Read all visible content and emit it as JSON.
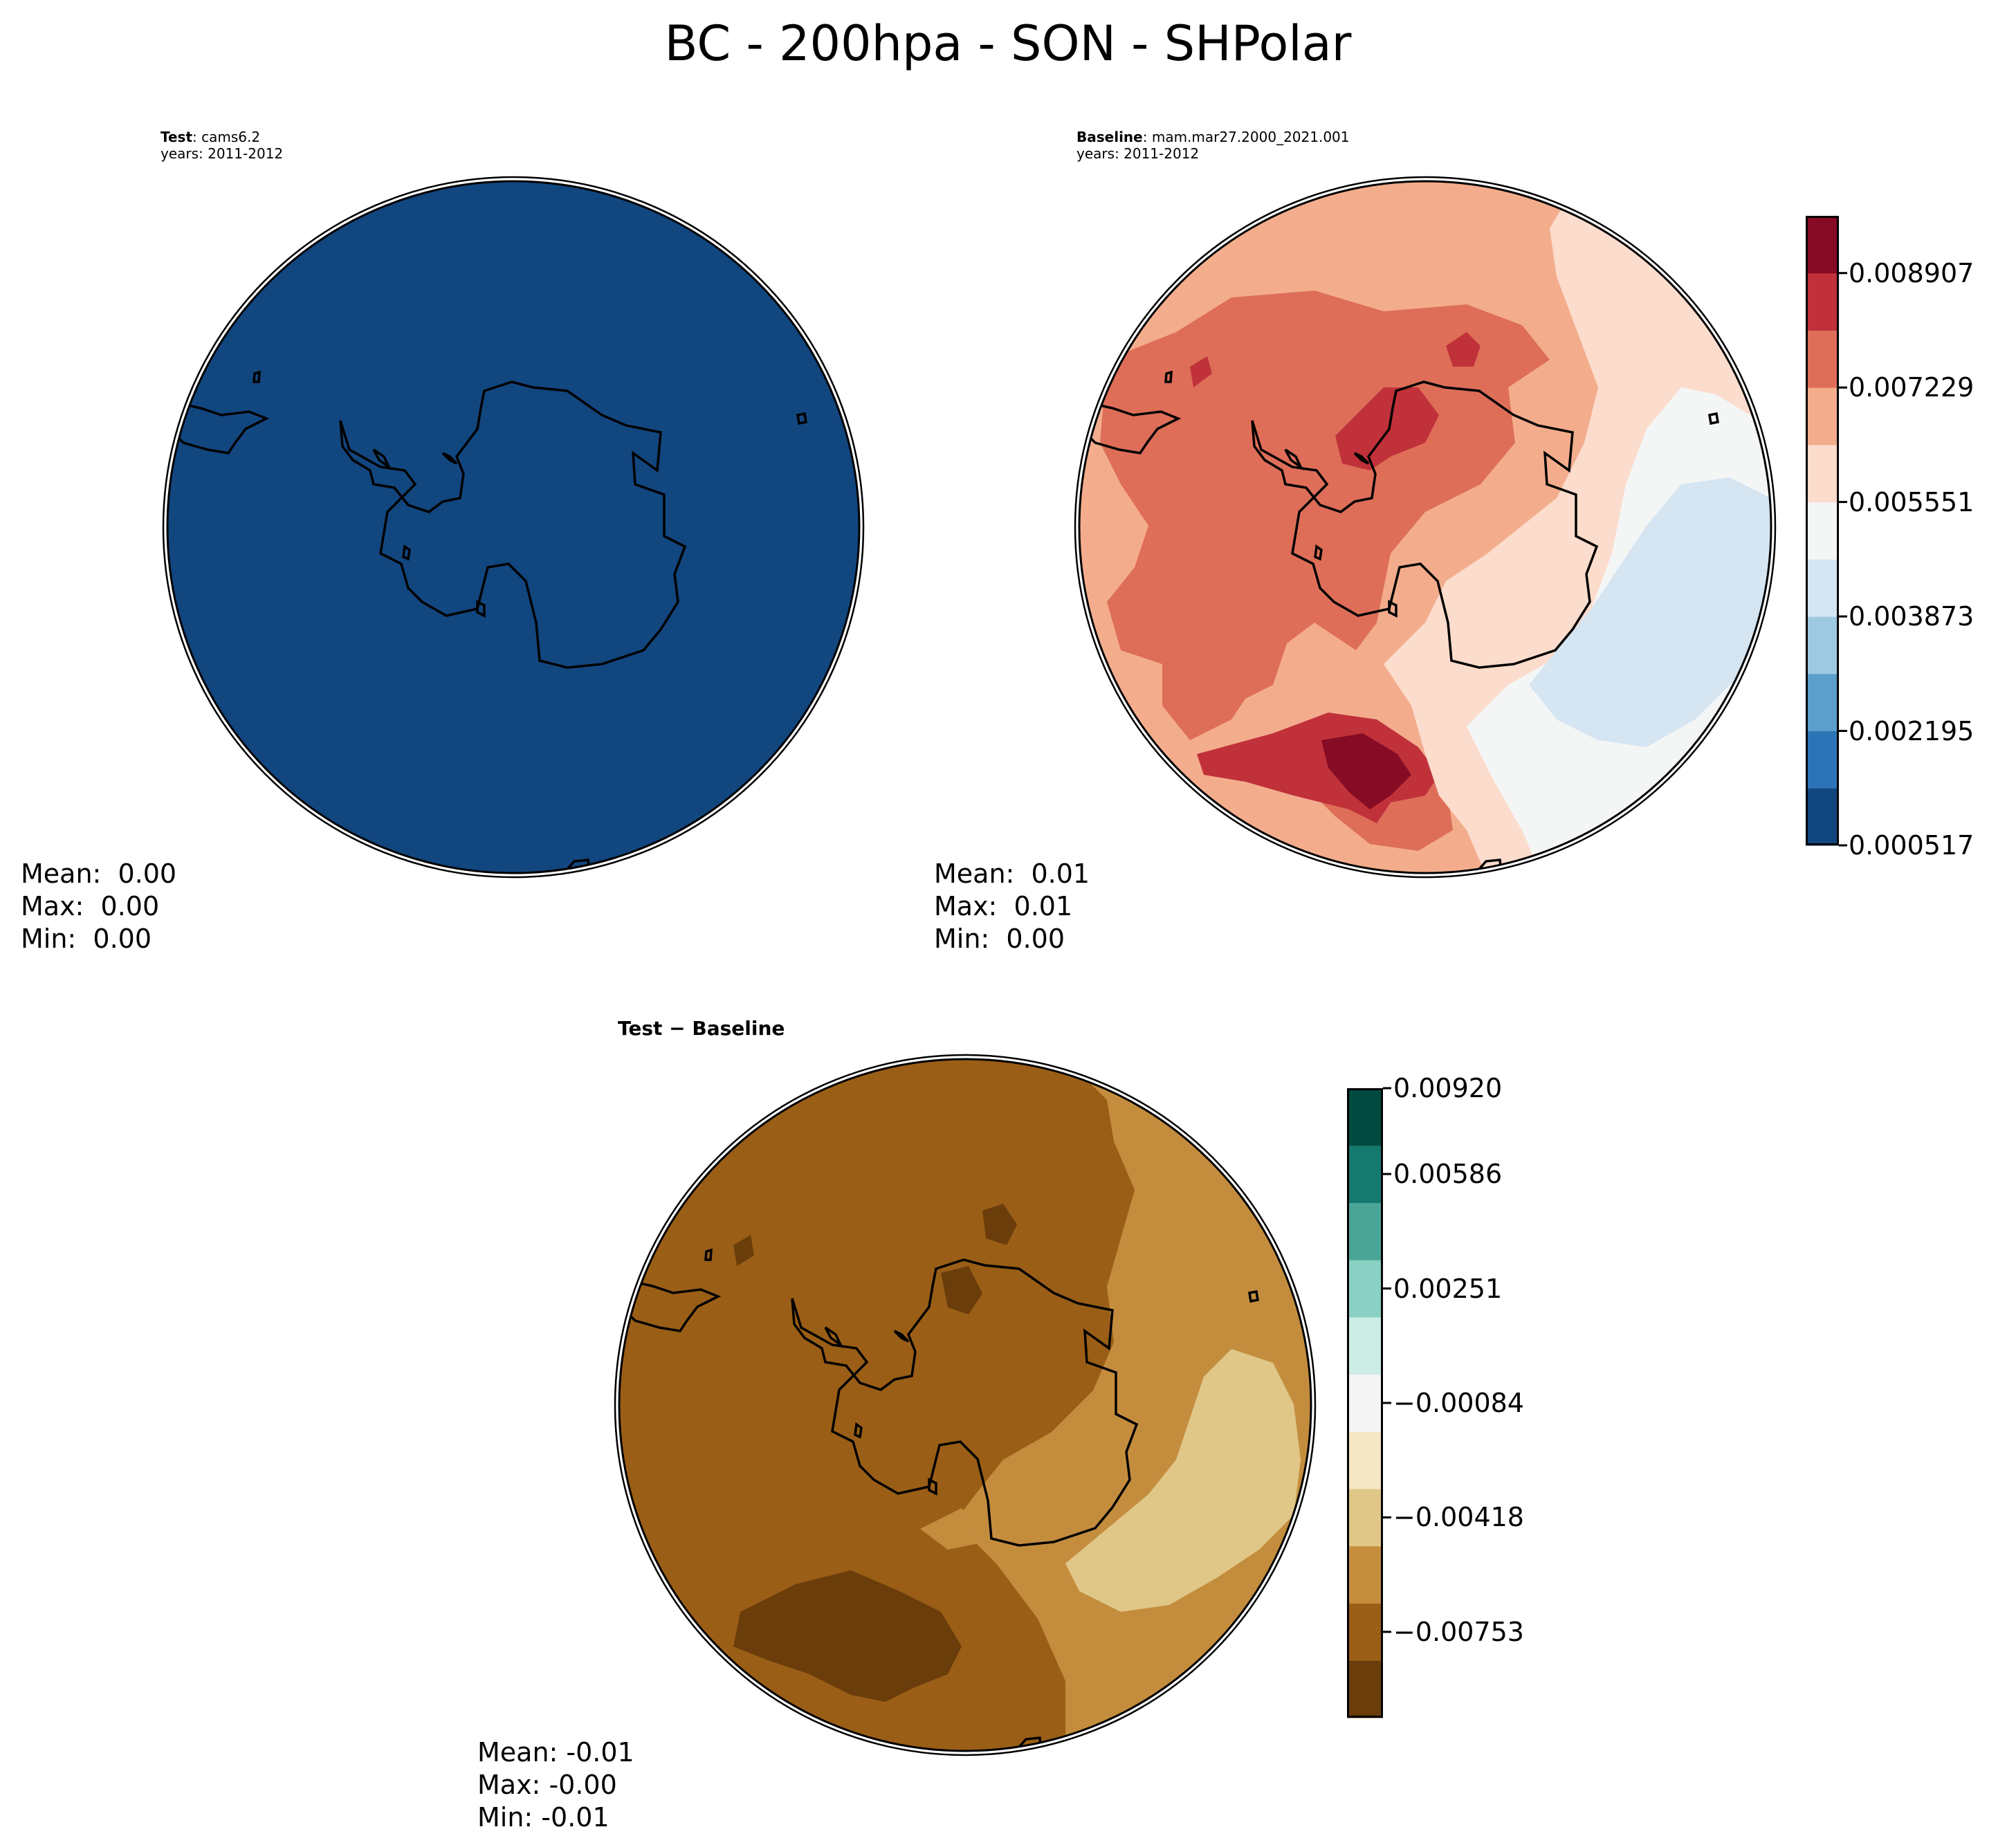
{
  "title": "BC - 200hpa - SON - SHPolar",
  "test_panel": {
    "label_bold": "Test",
    "label_rest": ": cams6.2",
    "years": "years: 2011-2012",
    "stats": {
      "mean": "Mean:  0.00",
      "max": "Max:  0.00",
      "min": "Min:  0.00"
    },
    "fill_color": "#12467f"
  },
  "baseline_panel": {
    "label_bold": "Baseline",
    "label_rest": ": mam.mar27.2000_2021.001",
    "years": "years: 2011-2012",
    "stats": {
      "mean": "Mean:  0.01",
      "max": "Max:  0.01",
      "min": "Min:  0.00"
    }
  },
  "diff_panel": {
    "label": "Test − Baseline",
    "stats": {
      "mean": "Mean: -0.01",
      "max": "Max: -0.00",
      "min": "Min: -0.01"
    }
  },
  "colorbar_top": {
    "ticks": [
      "0.000517",
      "0.002195",
      "0.003873",
      "0.005551",
      "0.007229",
      "0.008907"
    ],
    "colors": [
      "#12467f",
      "#2c74b5",
      "#5c9fcb",
      "#9ecae1",
      "#d5e5f2",
      "#f4f6f6",
      "#fcdccc",
      "#f3ad8d",
      "#de6e58",
      "#c0313a",
      "#860b25"
    ]
  },
  "colorbar_diff": {
    "ticks": [
      "−0.00753",
      "−0.00418",
      "−0.00084",
      "0.00251",
      "0.00586",
      "0.00920"
    ],
    "colors": [
      "#6a3d0a",
      "#9a5e17",
      "#c48d3e",
      "#e0c787",
      "#f5e7c3",
      "#f4f5f4",
      "#cdece6",
      "#8ad1c3",
      "#4ba597",
      "#167970",
      "#014a3f"
    ]
  }
}
